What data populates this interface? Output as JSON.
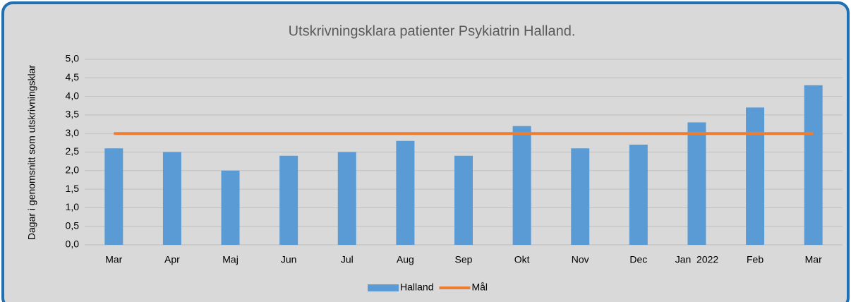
{
  "chart_data": {
    "type": "bar",
    "title": "Utskrivningsklara patienter Psykiatrin Halland.",
    "y_label": "Dagar i genomsnitt som utskrivningsklar",
    "categories": [
      "Mar",
      "Apr",
      "Maj",
      "Jun",
      "Jul",
      "Aug",
      "Sep",
      "Okt",
      "Nov",
      "Dec",
      "Jan  2022",
      "Feb",
      "Mar"
    ],
    "series": [
      {
        "name": "Halland",
        "type": "bar",
        "color": "#5b9bd5",
        "values": [
          2.6,
          2.5,
          2.0,
          2.4,
          2.5,
          2.8,
          2.4,
          3.2,
          2.6,
          2.7,
          3.3,
          3.7,
          4.3
        ]
      },
      {
        "name": "Mål",
        "type": "line",
        "color": "#ed7d31",
        "values": [
          3.0,
          3.0,
          3.0,
          3.0,
          3.0,
          3.0,
          3.0,
          3.0,
          3.0,
          3.0,
          3.0,
          3.0,
          3.0
        ]
      }
    ],
    "ylim": [
      0,
      5
    ],
    "yticks": [
      {
        "value": 0,
        "label": "0,0"
      },
      {
        "value": 0.5,
        "label": "0,5"
      },
      {
        "value": 1,
        "label": "1,0"
      },
      {
        "value": 1.5,
        "label": "1,5"
      },
      {
        "value": 2,
        "label": "2,0"
      },
      {
        "value": 2.5,
        "label": "2,5"
      },
      {
        "value": 3,
        "label": "3,0"
      },
      {
        "value": 3.5,
        "label": "3,5"
      },
      {
        "value": 4,
        "label": "4,0"
      },
      {
        "value": 4.5,
        "label": "4,5"
      },
      {
        "value": 5,
        "label": "5,0"
      }
    ],
    "grid": true,
    "legend": "bottom"
  }
}
